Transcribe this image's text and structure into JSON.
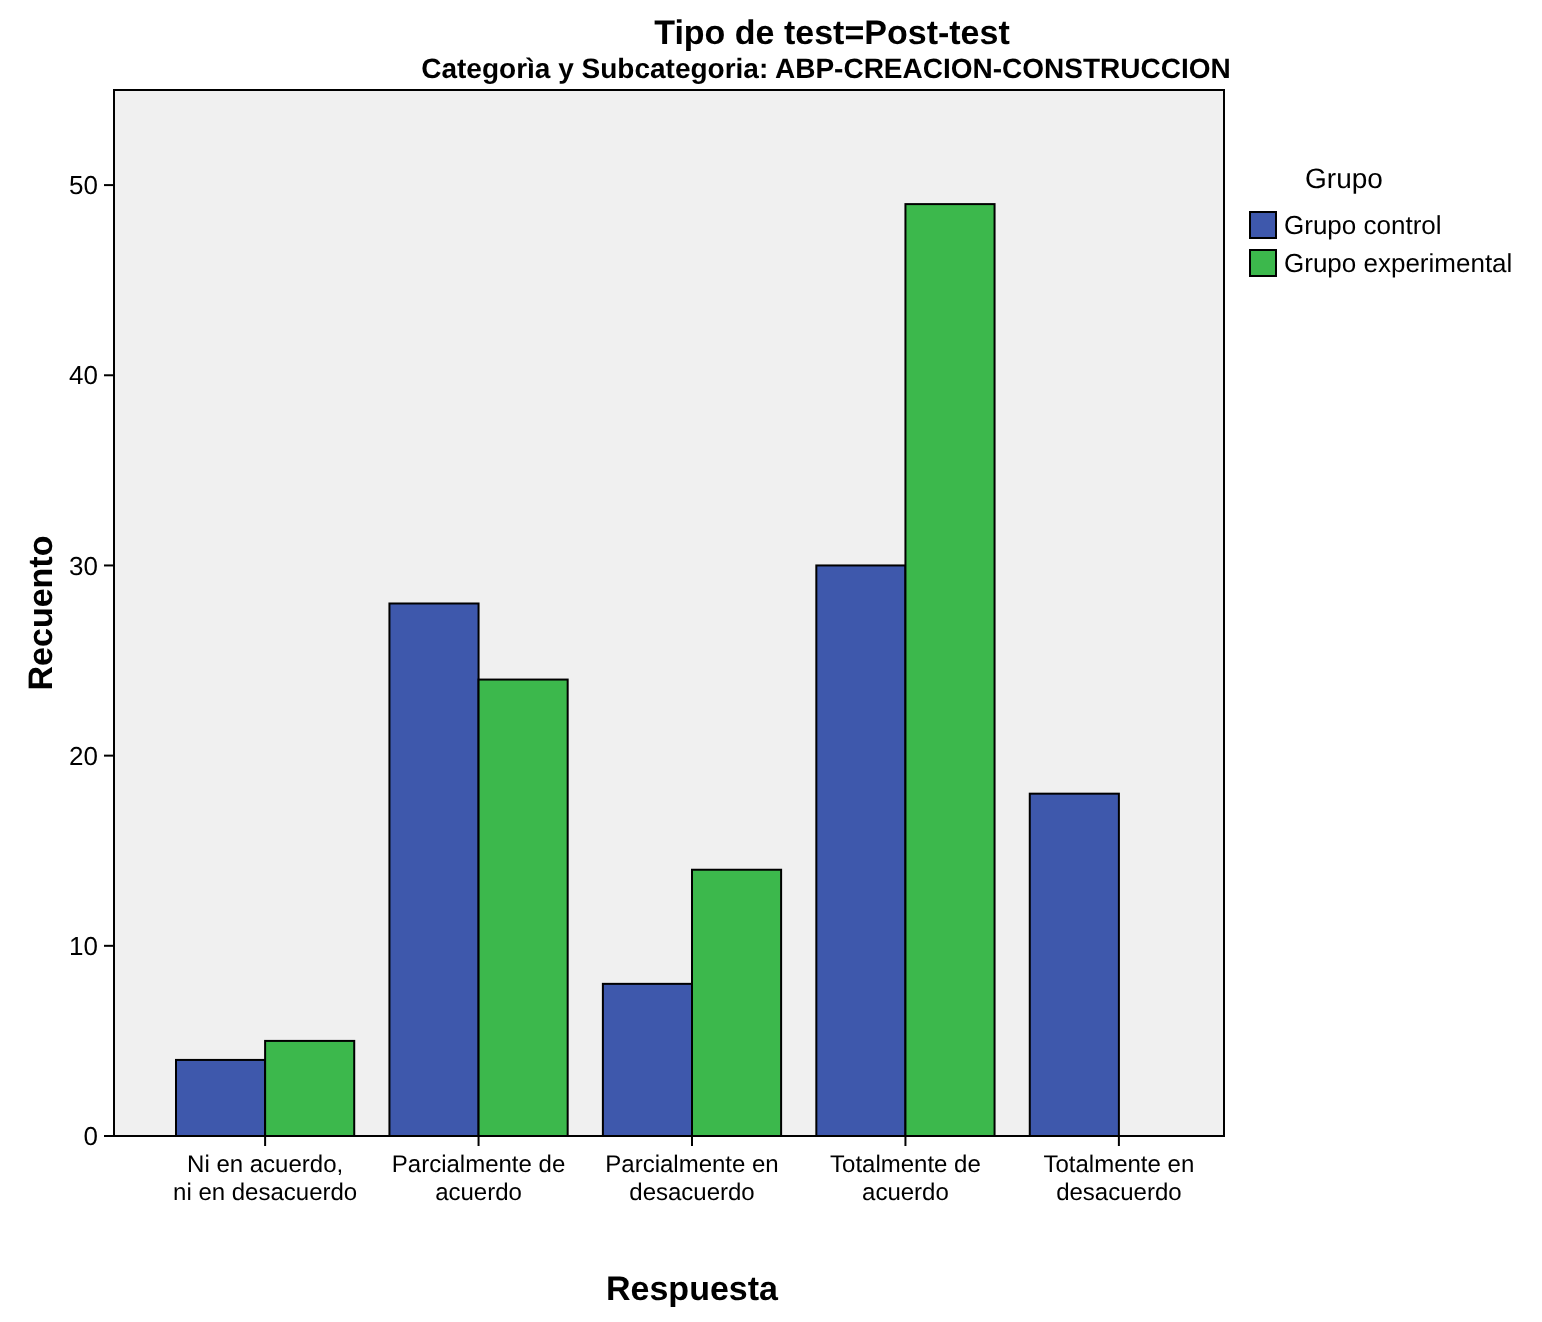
{
  "chart_data": {
    "type": "bar",
    "title": "Tipo de test=Post-test",
    "subtitle": "Categorìa y Subcategoria: ABP-CREACION-CONSTRUCCION",
    "xlabel": "Respuesta",
    "ylabel": "Recuento",
    "legend_title": "Grupo",
    "legend": "right",
    "categories": [
      "Ni en acuerdo, ni en desacuerdo",
      "Parcialmente de acuerdo",
      "Parcialmente en desacuerdo",
      "Totalmente de acuerdo",
      "Totalmente en desacuerdo"
    ],
    "series": [
      {
        "name": "Grupo control",
        "color": "#3e58ac",
        "values": [
          4,
          28,
          8,
          30,
          18
        ]
      },
      {
        "name": "Grupo experimental",
        "color": "#3cb84c",
        "values": [
          5,
          24,
          14,
          49,
          null
        ]
      }
    ],
    "ylim": [
      0,
      55
    ],
    "yticks": [
      0,
      10,
      20,
      30,
      40,
      50
    ],
    "grid": false
  }
}
